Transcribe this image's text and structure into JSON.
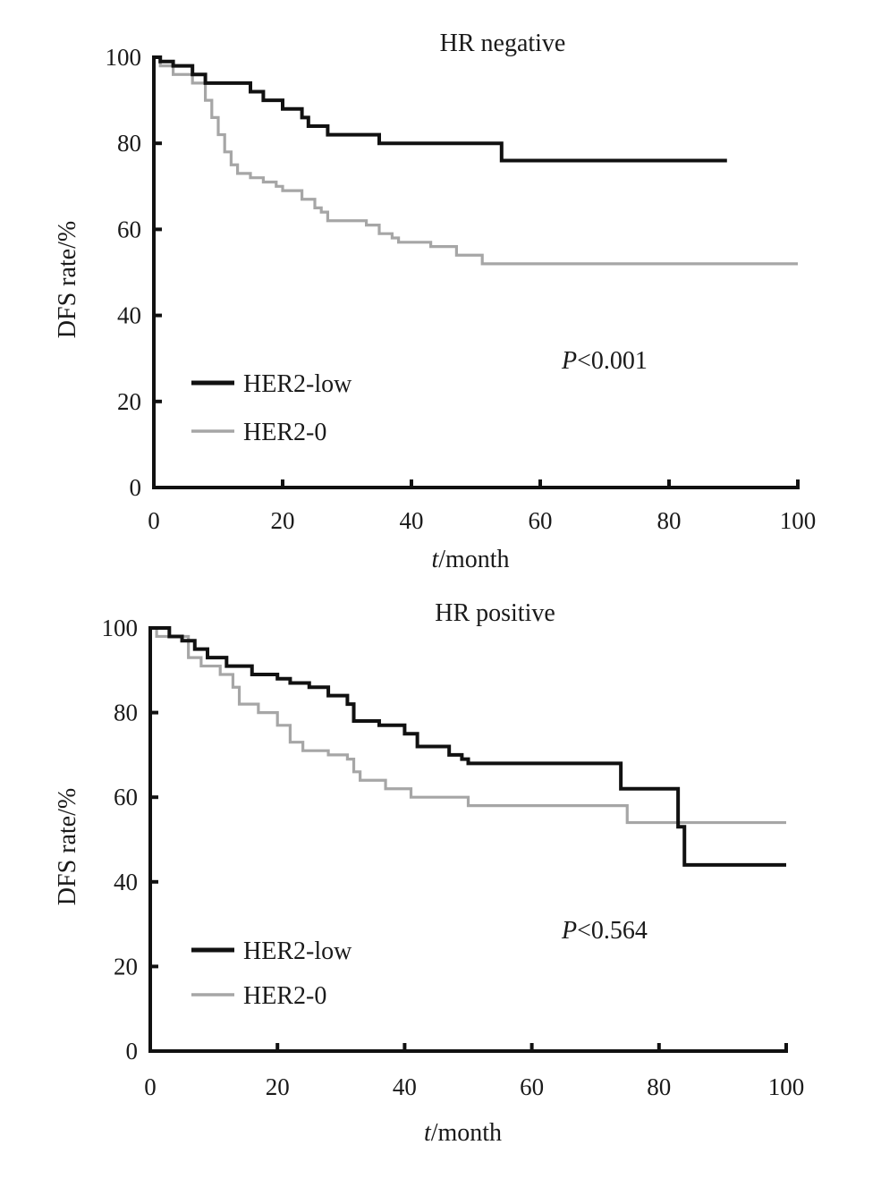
{
  "chart_data": [
    {
      "type": "line",
      "step": true,
      "title": "HR negative",
      "xlabel_italic": "t",
      "xlabel_rest": "/month",
      "ylabel": "DFS rate/%",
      "xlim": [
        0,
        100
      ],
      "ylim": [
        0,
        100
      ],
      "xticks": [
        0,
        20,
        40,
        60,
        80,
        100
      ],
      "yticks": [
        0,
        20,
        40,
        60,
        80,
        100
      ],
      "grid": false,
      "legend_position": "bottom-left",
      "annotation": {
        "italic": "P",
        "rest": "<0.001"
      },
      "series": [
        {
          "name": "HER2-low",
          "color": "#111111",
          "x": [
            0,
            1,
            3,
            6,
            8,
            15,
            17,
            20,
            23,
            24,
            27,
            35,
            54,
            89
          ],
          "y": [
            100,
            99,
            98,
            96,
            94,
            92,
            90,
            88,
            86,
            84,
            82,
            80,
            76,
            76
          ]
        },
        {
          "name": "HER2-0",
          "color": "#a6a6a6",
          "x": [
            0,
            1,
            3,
            6,
            8,
            9,
            10,
            11,
            12,
            13,
            15,
            17,
            19,
            20,
            23,
            25,
            26,
            27,
            33,
            35,
            37,
            38,
            43,
            47,
            51,
            100
          ],
          "y": [
            100,
            98,
            96,
            94,
            90,
            86,
            82,
            78,
            75,
            73,
            72,
            71,
            70,
            69,
            67,
            65,
            64,
            62,
            61,
            59,
            58,
            57,
            56,
            54,
            52,
            52
          ]
        }
      ]
    },
    {
      "type": "line",
      "step": true,
      "title": "HR positive",
      "xlabel_italic": "t",
      "xlabel_rest": "/month",
      "ylabel": "DFS rate/%",
      "xlim": [
        0,
        100
      ],
      "ylim": [
        0,
        100
      ],
      "xticks": [
        0,
        20,
        40,
        60,
        80,
        100
      ],
      "yticks": [
        0,
        20,
        40,
        60,
        80,
        100
      ],
      "grid": false,
      "legend_position": "bottom-left",
      "annotation": {
        "italic": "P",
        "rest": "<0.564"
      },
      "series": [
        {
          "name": "HER2-low",
          "color": "#111111",
          "x": [
            0,
            3,
            5,
            7,
            9,
            12,
            16,
            20,
            22,
            25,
            28,
            31,
            32,
            36,
            40,
            42,
            47,
            49,
            50,
            74,
            83,
            84,
            100
          ],
          "y": [
            100,
            98,
            97,
            95,
            93,
            91,
            89,
            88,
            87,
            86,
            84,
            82,
            78,
            77,
            75,
            72,
            70,
            69,
            68,
            62,
            53,
            44,
            44
          ]
        },
        {
          "name": "HER2-0",
          "color": "#a6a6a6",
          "x": [
            0,
            1,
            6,
            8,
            11,
            13,
            14,
            17,
            20,
            22,
            24,
            25,
            28,
            31,
            32,
            33,
            37,
            41,
            50,
            75,
            100
          ],
          "y": [
            100,
            98,
            93,
            91,
            89,
            86,
            82,
            80,
            77,
            73,
            71,
            71,
            70,
            69,
            66,
            64,
            62,
            60,
            58,
            54,
            54
          ]
        }
      ]
    }
  ]
}
